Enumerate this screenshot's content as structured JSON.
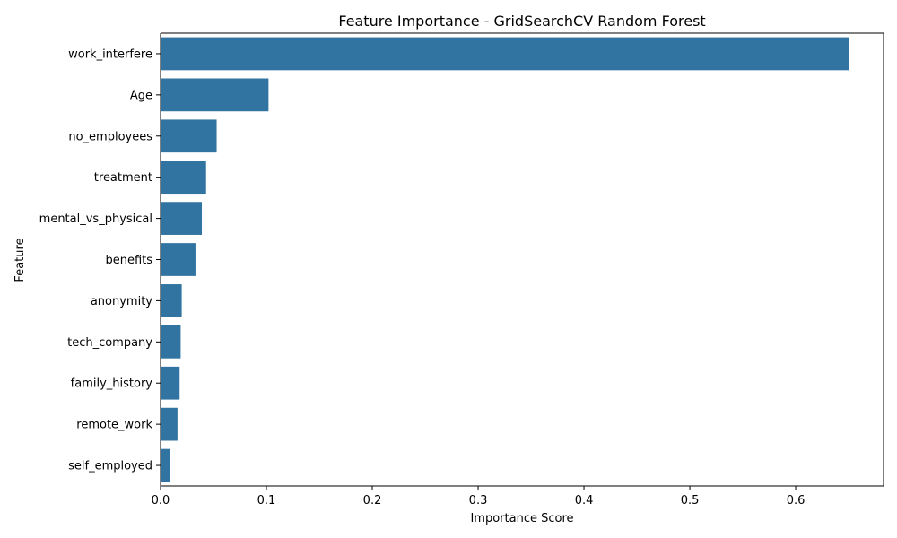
{
  "chart_data": {
    "type": "bar",
    "orientation": "horizontal",
    "title": "Feature Importance - GridSearchCV Random Forest",
    "xlabel": "Importance Score",
    "ylabel": "Feature",
    "categories": [
      "work_interfere",
      "Age",
      "no_employees",
      "treatment",
      "mental_vs_physical",
      "benefits",
      "anonymity",
      "tech_company",
      "family_history",
      "remote_work",
      "self_employed"
    ],
    "values": [
      0.65,
      0.102,
      0.053,
      0.043,
      0.039,
      0.033,
      0.02,
      0.019,
      0.018,
      0.016,
      0.009
    ],
    "xlim": [
      0,
      0.683
    ],
    "xticks": [
      0,
      0.1,
      0.2,
      0.3,
      0.4,
      0.5,
      0.6
    ],
    "xtick_labels": [
      "0.0",
      "0.1",
      "0.2",
      "0.3",
      "0.4",
      "0.5",
      "0.6"
    ],
    "bar_color": "#3274a1",
    "grid": false
  }
}
